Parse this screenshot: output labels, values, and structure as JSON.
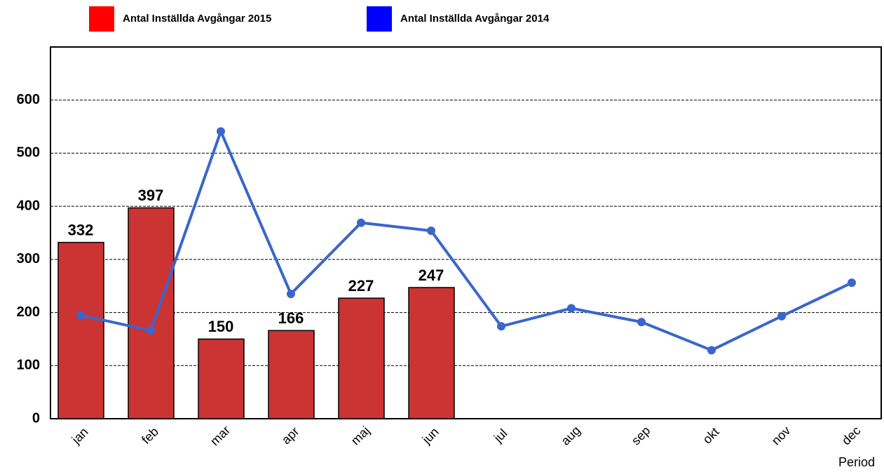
{
  "chart_data": {
    "type": "bar-line",
    "x_label": "Period",
    "categories": [
      "jan",
      "feb",
      "mar",
      "apr",
      "maj",
      "jun",
      "jul",
      "aug",
      "sep",
      "okt",
      "nov",
      "dec"
    ],
    "series": [
      {
        "name": "Antal Inställda Avgångar 2015",
        "type": "bar",
        "color": "#cc3333",
        "legend_color": "#ff0000",
        "values": [
          332,
          397,
          150,
          166,
          227,
          247,
          null,
          null,
          null,
          null,
          null,
          null
        ]
      },
      {
        "name": "Antal Inställda Avgångar 2014",
        "type": "line",
        "color": "#3a66cc",
        "legend_color": "#0000ff",
        "values": [
          195,
          166,
          541,
          235,
          369,
          354,
          174,
          208,
          182,
          129,
          193,
          256
        ]
      }
    ],
    "ylim": [
      0,
      700
    ],
    "yticks": [
      0,
      100,
      200,
      300,
      400,
      500,
      600
    ],
    "grid": true
  }
}
